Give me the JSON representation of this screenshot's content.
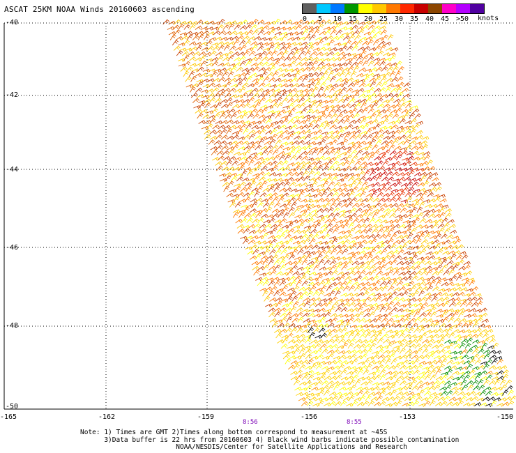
{
  "title": "ASCAT 25KM NOAA Winds 20160603 ascending",
  "legend": {
    "colors": [
      "#606060",
      "#00c8ff",
      "#0078ff",
      "#009600",
      "#ffff00",
      "#ffc800",
      "#ff7800",
      "#ff2800",
      "#c80000",
      "#8c4600",
      "#ff00c8",
      "#b400ff",
      "#5000a0"
    ],
    "labels": [
      "0",
      "5",
      "10",
      "15",
      "20",
      "25",
      "30",
      "35",
      "40",
      "45",
      ">50"
    ],
    "units": "knots"
  },
  "axes": {
    "lat_labels": [
      "-40",
      "-42",
      "-44",
      "-46",
      "-48",
      "-50"
    ],
    "lon_labels": [
      "-165",
      "-162",
      "-159",
      "-156",
      "-153",
      "-150"
    ]
  },
  "pass_times": [
    "8:56",
    "8:55"
  ],
  "notes": [
    "Note: 1) Times are GMT 2)Times along bottom correspond to measurement at ~45S",
    "      3)Data buffer is 22 hrs from 20160603 4) Black wind barbs indicate possible contamination",
    "                        NOAA/NESDIS/Center for Satellite Applications and Research"
  ]
}
